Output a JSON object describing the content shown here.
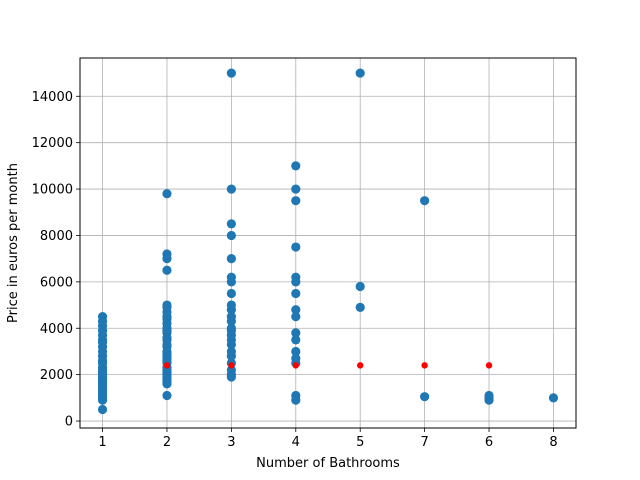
{
  "chart_data": {
    "type": "scatter",
    "title": "",
    "xlabel": "Number of Bathrooms",
    "ylabel": "Price in euros per month",
    "x_categories": [
      "1",
      "2",
      "3",
      "4",
      "5",
      "7",
      "6",
      "8"
    ],
    "y_ticks": [
      0,
      2000,
      4000,
      6000,
      8000,
      10000,
      12000,
      14000
    ],
    "ylim": [
      -300,
      15650
    ],
    "grid": true,
    "series": [
      {
        "color": "#1f77b4",
        "points": [
          {
            "x": "1",
            "y": 500
          },
          {
            "x": "1",
            "y": 900
          },
          {
            "x": "1",
            "y": 1000
          },
          {
            "x": "1",
            "y": 1100
          },
          {
            "x": "1",
            "y": 1200
          },
          {
            "x": "1",
            "y": 1300
          },
          {
            "x": "1",
            "y": 1400
          },
          {
            "x": "1",
            "y": 1500
          },
          {
            "x": "1",
            "y": 1600
          },
          {
            "x": "1",
            "y": 1700
          },
          {
            "x": "1",
            "y": 1800
          },
          {
            "x": "1",
            "y": 1900
          },
          {
            "x": "1",
            "y": 2000
          },
          {
            "x": "1",
            "y": 2100
          },
          {
            "x": "1",
            "y": 2200
          },
          {
            "x": "1",
            "y": 2300
          },
          {
            "x": "1",
            "y": 2500
          },
          {
            "x": "1",
            "y": 2600
          },
          {
            "x": "1",
            "y": 2800
          },
          {
            "x": "1",
            "y": 3000
          },
          {
            "x": "1",
            "y": 3200
          },
          {
            "x": "1",
            "y": 3400
          },
          {
            "x": "1",
            "y": 3500
          },
          {
            "x": "1",
            "y": 3700
          },
          {
            "x": "1",
            "y": 3900
          },
          {
            "x": "1",
            "y": 4100
          },
          {
            "x": "1",
            "y": 4300
          },
          {
            "x": "1",
            "y": 4500
          },
          {
            "x": "2",
            "y": 1100
          },
          {
            "x": "2",
            "y": 1600
          },
          {
            "x": "2",
            "y": 1700
          },
          {
            "x": "2",
            "y": 1800
          },
          {
            "x": "2",
            "y": 1900
          },
          {
            "x": "2",
            "y": 2000
          },
          {
            "x": "2",
            "y": 2100
          },
          {
            "x": "2",
            "y": 2200
          },
          {
            "x": "2",
            "y": 2300
          },
          {
            "x": "2",
            "y": 2500
          },
          {
            "x": "2",
            "y": 2600
          },
          {
            "x": "2",
            "y": 2700
          },
          {
            "x": "2",
            "y": 2800
          },
          {
            "x": "2",
            "y": 2900
          },
          {
            "x": "2",
            "y": 3000
          },
          {
            "x": "2",
            "y": 3200
          },
          {
            "x": "2",
            "y": 3300
          },
          {
            "x": "2",
            "y": 3500
          },
          {
            "x": "2",
            "y": 3600
          },
          {
            "x": "2",
            "y": 3800
          },
          {
            "x": "2",
            "y": 3900
          },
          {
            "x": "2",
            "y": 4000
          },
          {
            "x": "2",
            "y": 4200
          },
          {
            "x": "2",
            "y": 4400
          },
          {
            "x": "2",
            "y": 4500
          },
          {
            "x": "2",
            "y": 4700
          },
          {
            "x": "2",
            "y": 4900
          },
          {
            "x": "2",
            "y": 5000
          },
          {
            "x": "2",
            "y": 6500
          },
          {
            "x": "2",
            "y": 7000
          },
          {
            "x": "2",
            "y": 7200
          },
          {
            "x": "2",
            "y": 9800
          },
          {
            "x": "3",
            "y": 1900
          },
          {
            "x": "3",
            "y": 2000
          },
          {
            "x": "3",
            "y": 2200
          },
          {
            "x": "3",
            "y": 2500
          },
          {
            "x": "3",
            "y": 2800
          },
          {
            "x": "3",
            "y": 3000
          },
          {
            "x": "3",
            "y": 3300
          },
          {
            "x": "3",
            "y": 3500
          },
          {
            "x": "3",
            "y": 3700
          },
          {
            "x": "3",
            "y": 3900
          },
          {
            "x": "3",
            "y": 4000
          },
          {
            "x": "3",
            "y": 4300
          },
          {
            "x": "3",
            "y": 4500
          },
          {
            "x": "3",
            "y": 4800
          },
          {
            "x": "3",
            "y": 5000
          },
          {
            "x": "3",
            "y": 5500
          },
          {
            "x": "3",
            "y": 6000
          },
          {
            "x": "3",
            "y": 6200
          },
          {
            "x": "3",
            "y": 7000
          },
          {
            "x": "3",
            "y": 8000
          },
          {
            "x": "3",
            "y": 8500
          },
          {
            "x": "3",
            "y": 10000
          },
          {
            "x": "3",
            "y": 15000
          },
          {
            "x": "4",
            "y": 900
          },
          {
            "x": "4",
            "y": 1100
          },
          {
            "x": "4",
            "y": 2500
          },
          {
            "x": "4",
            "y": 2700
          },
          {
            "x": "4",
            "y": 3000
          },
          {
            "x": "4",
            "y": 3500
          },
          {
            "x": "4",
            "y": 3800
          },
          {
            "x": "4",
            "y": 4500
          },
          {
            "x": "4",
            "y": 4800
          },
          {
            "x": "4",
            "y": 5500
          },
          {
            "x": "4",
            "y": 6000
          },
          {
            "x": "4",
            "y": 6200
          },
          {
            "x": "4",
            "y": 7500
          },
          {
            "x": "4",
            "y": 9500
          },
          {
            "x": "4",
            "y": 10000
          },
          {
            "x": "4",
            "y": 11000
          },
          {
            "x": "5",
            "y": 4900
          },
          {
            "x": "5",
            "y": 5800
          },
          {
            "x": "5",
            "y": 15000
          },
          {
            "x": "7",
            "y": 1050
          },
          {
            "x": "7",
            "y": 9500
          },
          {
            "x": "6",
            "y": 900
          },
          {
            "x": "6",
            "y": 1000
          },
          {
            "x": "6",
            "y": 1100
          },
          {
            "x": "8",
            "y": 1000
          }
        ]
      },
      {
        "color": "#ff0000",
        "points": [
          {
            "x": "2",
            "y": 2400
          },
          {
            "x": "3",
            "y": 2400
          },
          {
            "x": "4",
            "y": 2400
          },
          {
            "x": "5",
            "y": 2400
          },
          {
            "x": "7",
            "y": 2400
          },
          {
            "x": "6",
            "y": 2400
          }
        ]
      }
    ]
  }
}
